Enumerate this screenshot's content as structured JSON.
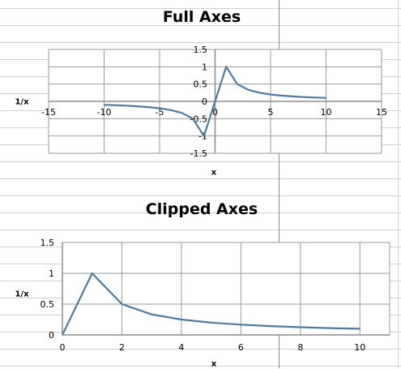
{
  "theme": {
    "series_color": "#4f7aa0",
    "axis_color": "#8c8c8c",
    "grid_color": "#9a9a9a",
    "sheet_grid_color": "#d0d0d0",
    "sheet_col_border": "#8a8a8a"
  },
  "chart_data": [
    {
      "type": "line",
      "title": "Full Axes",
      "xlabel": "x",
      "ylabel": "1/x",
      "xlim": [
        -15,
        15
      ],
      "ylim": [
        -1.5,
        1.5
      ],
      "xticks": [
        -15,
        -10,
        -5,
        0,
        5,
        10,
        15
      ],
      "yticks": [
        -1.5,
        -1,
        -0.5,
        0,
        0.5,
        1,
        1.5
      ],
      "xtick_labels": [
        "-15",
        "-10",
        "-5",
        "0",
        "5",
        "10",
        "15"
      ],
      "ytick_labels": [
        "-1.5",
        "-1",
        "-0.5",
        "0",
        "0.5",
        "1",
        "1.5"
      ],
      "grid": true,
      "legend": "none",
      "series": [
        {
          "x": [
            -10,
            -9,
            -8,
            -7,
            -6,
            -5,
            -4,
            -3,
            -2,
            -1,
            1,
            2,
            3,
            4,
            5,
            6,
            7,
            8,
            9,
            10
          ],
          "y": [
            -0.1,
            -0.111,
            -0.125,
            -0.143,
            -0.167,
            -0.2,
            -0.25,
            -0.333,
            -0.5,
            -1,
            1,
            0.5,
            0.333,
            0.25,
            0.2,
            0.167,
            0.143,
            0.125,
            0.111,
            0.1
          ]
        }
      ]
    },
    {
      "type": "line",
      "title": "Clipped Axes",
      "xlabel": "x",
      "ylabel": "1/x",
      "xlim": [
        0,
        11
      ],
      "ylim": [
        0,
        1.5
      ],
      "xticks": [
        0,
        2,
        4,
        6,
        8,
        10
      ],
      "yticks": [
        0,
        0.5,
        1,
        1.5
      ],
      "xtick_labels": [
        "0",
        "2",
        "4",
        "6",
        "8",
        "10"
      ],
      "ytick_labels": [
        "0",
        "0.5",
        "1",
        "1.5"
      ],
      "grid": true,
      "legend": "none",
      "series": [
        {
          "x": [
            0,
            1,
            2,
            3,
            4,
            5,
            6,
            7,
            8,
            9,
            10
          ],
          "y": [
            0,
            1,
            0.5,
            0.333,
            0.25,
            0.2,
            0.167,
            0.143,
            0.125,
            0.111,
            0.1
          ]
        }
      ]
    }
  ]
}
